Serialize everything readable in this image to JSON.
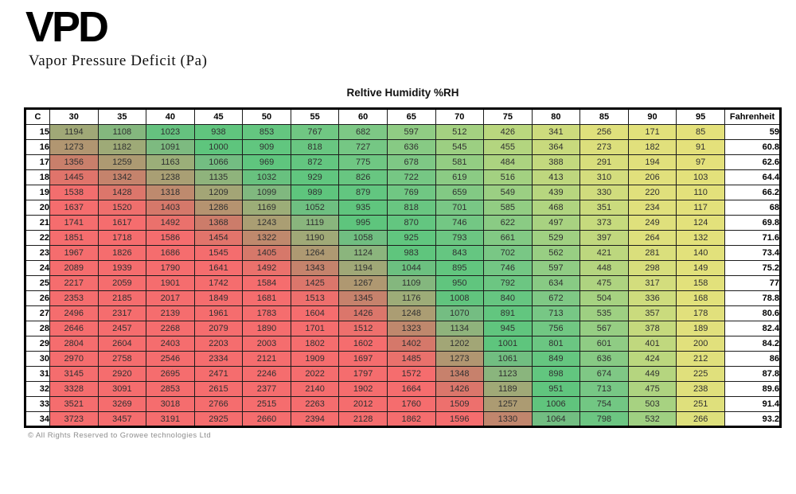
{
  "header": {
    "logo": "VPD",
    "subtitle": "Vapor Pressure Deficit (Pa)"
  },
  "footer": {
    "copyright": "© All Rights Reserved to Growee technologies Ltd"
  },
  "colors": {
    "cell_text": "#303030",
    "border": "#000000",
    "footer_text": "#8d8d8d",
    "vpd_color_stops": [
      [
        85,
        "#e4e17b"
      ],
      [
        260,
        "#dfe07c"
      ],
      [
        420,
        "#bcd77e"
      ],
      [
        560,
        "#98ce83"
      ],
      [
        700,
        "#79c785"
      ],
      [
        860,
        "#63c680"
      ],
      [
        1000,
        "#5ec57d"
      ],
      [
        1070,
        "#74bd82"
      ],
      [
        1160,
        "#9aaf79"
      ],
      [
        1260,
        "#ad9a72"
      ],
      [
        1370,
        "#cd7b6a"
      ],
      [
        1460,
        "#e4736b"
      ],
      [
        1550,
        "#f56d6e"
      ]
    ]
  },
  "chart_data": {
    "type": "heatmap",
    "title": "VPD",
    "subtitle": "Vapor Pressure Deficit (Pa)",
    "x_axis_label": "Reltive Humidity %RH",
    "y_axis_label": "C",
    "secondary_y_label": "Fahrenheit",
    "x_ticks": [
      30,
      35,
      40,
      45,
      50,
      55,
      60,
      65,
      70,
      75,
      80,
      85,
      90,
      95
    ],
    "y_ticks": [
      15,
      16,
      17,
      18,
      19,
      20,
      21,
      22,
      23,
      24,
      25,
      26,
      27,
      28,
      29,
      30,
      31,
      32,
      33,
      34
    ],
    "fahrenheit": [
      "59",
      "60.8",
      "62.6",
      "64.4",
      "66.2",
      "68",
      "69.8",
      "71.6",
      "73.4",
      "75.2",
      "77",
      "78.8",
      "80.6",
      "82.4",
      "84.2",
      "86",
      "87.8",
      "89.6",
      "91.4",
      "93.2"
    ],
    "values": [
      [
        1194,
        1108,
        1023,
        938,
        853,
        767,
        682,
        597,
        512,
        426,
        341,
        256,
        171,
        85
      ],
      [
        1273,
        1182,
        1091,
        1000,
        909,
        818,
        727,
        636,
        545,
        455,
        364,
        273,
        182,
        91
      ],
      [
        1356,
        1259,
        1163,
        1066,
        969,
        872,
        775,
        678,
        581,
        484,
        388,
        291,
        194,
        97
      ],
      [
        1445,
        1342,
        1238,
        1135,
        1032,
        929,
        826,
        722,
        619,
        516,
        413,
        310,
        206,
        103
      ],
      [
        1538,
        1428,
        1318,
        1209,
        1099,
        989,
        879,
        769,
        659,
        549,
        439,
        330,
        220,
        110
      ],
      [
        1637,
        1520,
        1403,
        1286,
        1169,
        1052,
        935,
        818,
        701,
        585,
        468,
        351,
        234,
        117
      ],
      [
        1741,
        1617,
        1492,
        1368,
        1243,
        1119,
        995,
        870,
        746,
        622,
        497,
        373,
        249,
        124
      ],
      [
        1851,
        1718,
        1586,
        1454,
        1322,
        1190,
        1058,
        925,
        793,
        661,
        529,
        397,
        264,
        132
      ],
      [
        1967,
        1826,
        1686,
        1545,
        1405,
        1264,
        1124,
        983,
        843,
        702,
        562,
        421,
        281,
        140
      ],
      [
        2089,
        1939,
        1790,
        1641,
        1492,
        1343,
        1194,
        1044,
        895,
        746,
        597,
        448,
        298,
        149
      ],
      [
        2217,
        2059,
        1901,
        1742,
        1584,
        1425,
        1267,
        1109,
        950,
        792,
        634,
        475,
        317,
        158
      ],
      [
        2353,
        2185,
        2017,
        1849,
        1681,
        1513,
        1345,
        1176,
        1008,
        840,
        672,
        504,
        336,
        168
      ],
      [
        2496,
        2317,
        2139,
        1961,
        1783,
        1604,
        1426,
        1248,
        1070,
        891,
        713,
        535,
        357,
        178
      ],
      [
        2646,
        2457,
        2268,
        2079,
        1890,
        1701,
        1512,
        1323,
        1134,
        945,
        756,
        567,
        378,
        189
      ],
      [
        2804,
        2604,
        2403,
        2203,
        2003,
        1802,
        1602,
        1402,
        1202,
        1001,
        801,
        601,
        401,
        200
      ],
      [
        2970,
        2758,
        2546,
        2334,
        2121,
        1909,
        1697,
        1485,
        1273,
        1061,
        849,
        636,
        424,
        212
      ],
      [
        3145,
        2920,
        2695,
        2471,
        2246,
        2022,
        1797,
        1572,
        1348,
        1123,
        898,
        674,
        449,
        225
      ],
      [
        3328,
        3091,
        2853,
        2615,
        2377,
        2140,
        1902,
        1664,
        1426,
        1189,
        951,
        713,
        475,
        238
      ],
      [
        3521,
        3269,
        3018,
        2766,
        2515,
        2263,
        2012,
        1760,
        1509,
        1257,
        1006,
        754,
        503,
        251
      ],
      [
        3723,
        3457,
        3191,
        2925,
        2660,
        2394,
        2128,
        1862,
        1596,
        1330,
        1064,
        798,
        532,
        266
      ]
    ]
  }
}
